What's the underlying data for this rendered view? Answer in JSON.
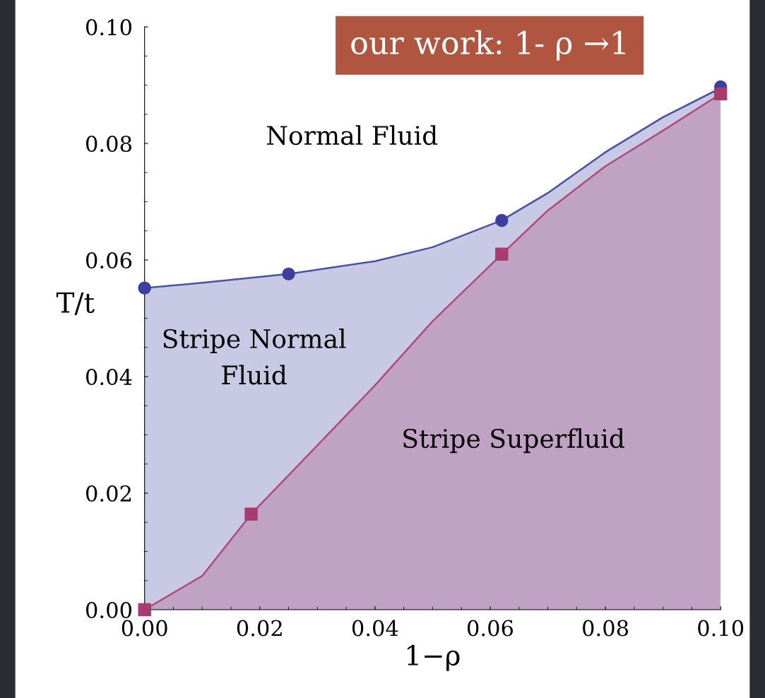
{
  "chart_data": {
    "type": "area",
    "xlabel": "1−ρ",
    "ylabel": "T/t",
    "xlim": [
      0,
      0.1
    ],
    "ylim": [
      0,
      0.1
    ],
    "xticks": [
      {
        "value": 0,
        "label": "0.00"
      },
      {
        "value": 0.02,
        "label": "0.02"
      },
      {
        "value": 0.04,
        "label": "0.04"
      },
      {
        "value": 0.06,
        "label": "0.06"
      },
      {
        "value": 0.08,
        "label": "0.08"
      },
      {
        "value": 0.1,
        "label": "0.10"
      }
    ],
    "yticks": [
      {
        "value": 0,
        "label": "0.00"
      },
      {
        "value": 0.02,
        "label": "0.02"
      },
      {
        "value": 0.04,
        "label": "0.04"
      },
      {
        "value": 0.06,
        "label": "0.06"
      },
      {
        "value": 0.08,
        "label": "0.08"
      },
      {
        "value": 0.1,
        "label": "0.10"
      }
    ],
    "grid": false,
    "legend": false,
    "series": [
      {
        "color": "#4a4fa8",
        "x": [
          0,
          0.01,
          0.025,
          0.04,
          0.05,
          0.062,
          0.07,
          0.08,
          0.09,
          0.1
        ],
        "values": [
          0.0552,
          0.0561,
          0.0576,
          0.0598,
          0.0622,
          0.0668,
          0.0715,
          0.0785,
          0.0845,
          0.0895
        ]
      },
      {
        "color": "#b04a78",
        "x": [
          0,
          0.01,
          0.0185,
          0.03,
          0.04,
          0.05,
          0.062,
          0.07,
          0.08,
          0.09,
          0.1
        ],
        "values": [
          0,
          0.0058,
          0.0164,
          0.0282,
          0.0385,
          0.0495,
          0.061,
          0.0685,
          0.0761,
          0.0822,
          0.0885
        ]
      },
      {
        "type": "scatter",
        "marker": "circle",
        "color": "#3a3fa0",
        "x": [
          0,
          0.025,
          0.062,
          0.1
        ],
        "values": [
          0.0552,
          0.0576,
          0.0668,
          0.0897
        ]
      },
      {
        "type": "scatter",
        "marker": "square",
        "color": "#a83c70",
        "x": [
          0,
          0.0185,
          0.062,
          0.1
        ],
        "values": [
          0,
          0.0164,
          0.061,
          0.0885
        ]
      }
    ],
    "annotations": [
      "Normal Fluid",
      "Stripe Normal\nFluid",
      "Stripe Superfluid",
      "our work: 1- ρ →1"
    ]
  }
}
